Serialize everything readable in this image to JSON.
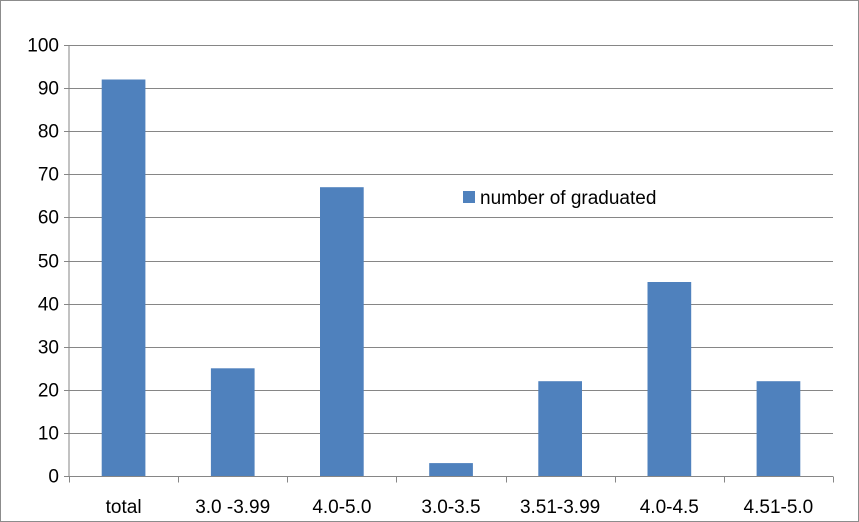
{
  "chart_data": {
    "type": "bar",
    "categories": [
      "total",
      "3.0 -3.99",
      "4.0-5.0",
      "3.0-3.5",
      "3.51-3.99",
      "4.0-4.5",
      "4.51-5.0"
    ],
    "series": [
      {
        "name": "number of graduated",
        "values": [
          92,
          25,
          67,
          3,
          22,
          45,
          22
        ],
        "color": "#4f81bd"
      }
    ],
    "title": "",
    "xlabel": "",
    "ylabel": "",
    "ylim": [
      0,
      100
    ],
    "yticks": [
      0,
      10,
      20,
      30,
      40,
      50,
      60,
      70,
      80,
      90,
      100
    ],
    "grid": true,
    "legend_position": "center-right",
    "gridline_color": "#868686",
    "axis_color": "#868686"
  }
}
